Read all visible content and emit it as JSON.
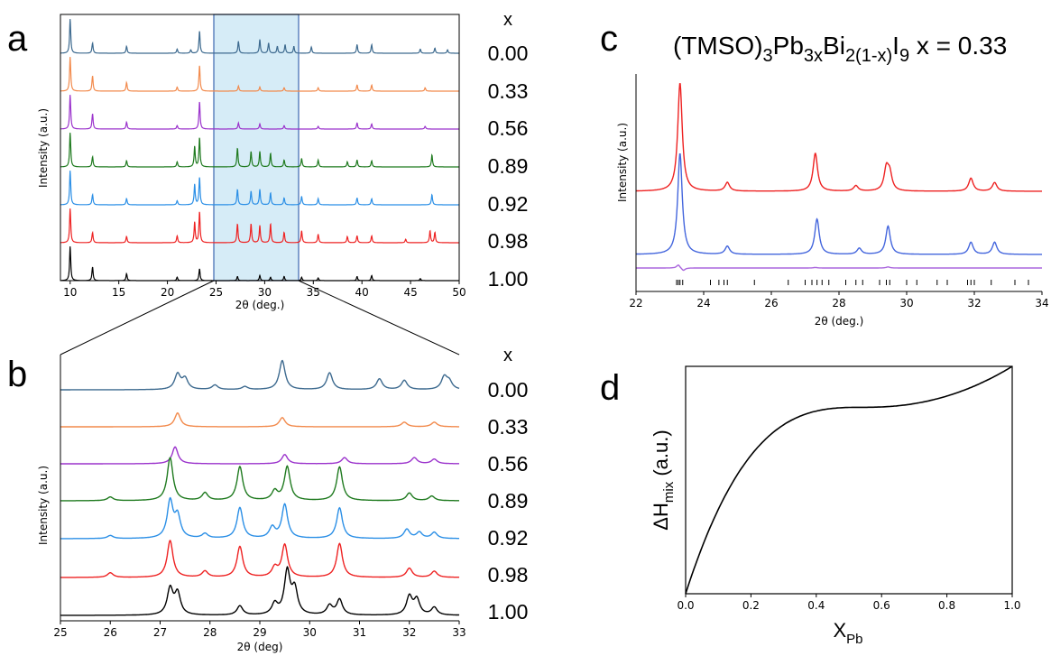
{
  "figure": {
    "x_header": "x",
    "composition_labels": [
      "0.00",
      "0.33",
      "0.56",
      "0.89",
      "0.92",
      "0.98",
      "1.00"
    ],
    "series_colors": [
      "#3d6a8f",
      "#f28a4c",
      "#9b33cc",
      "#1f7a1f",
      "#2b8fe6",
      "#ee2222",
      "#000000"
    ]
  },
  "panels": {
    "a": {
      "letter": "a",
      "ylabel": "Intensity (a.u.)",
      "xlabel_sym": "2θ",
      "xlabel_rest": "(deg.)",
      "highlight_range": [
        25,
        33.5
      ]
    },
    "b": {
      "letter": "b",
      "ylabel": "Intensity (a.u.)",
      "xlabel_sym": "2θ",
      "xlabel_rest": "(deg)"
    },
    "c": {
      "letter": "c",
      "title_main": "(TMSO)",
      "title_sub1": "3",
      "title_mid1": "Pb",
      "title_sub2": "3x",
      "title_mid2": "Bi",
      "title_sub3": "2(1-x)",
      "title_mid3": "I",
      "title_sub4": "9",
      "title_end": " x = 0.33",
      "ylabel": "Intensity (a.u.)",
      "xlabel_sym": "2θ",
      "xlabel_rest": "(deg.)",
      "series_colors": [
        "#ee2222",
        "#4466dd",
        "#aa66dd"
      ],
      "tick_marks_color": "#000000"
    },
    "d": {
      "letter": "d",
      "ylabel_main": "ΔH",
      "ylabel_sub": "mix",
      "ylabel_rest": " (a.u.)",
      "xlabel_main": "X",
      "xlabel_sub": "Pb"
    }
  },
  "chart_data": [
    {
      "panel": "a",
      "type": "line",
      "xlim": [
        9,
        50
      ],
      "xticks": [
        10,
        15,
        20,
        25,
        30,
        35,
        40,
        45,
        50
      ],
      "stacked": true,
      "series": [
        {
          "name": "0.00",
          "peaks": [
            [
              10.0,
              1.0
            ],
            [
              12.3,
              0.3
            ],
            [
              15.8,
              0.2
            ],
            [
              21.0,
              0.12
            ],
            [
              22.4,
              0.1
            ],
            [
              23.3,
              0.65
            ],
            [
              27.3,
              0.35
            ],
            [
              29.5,
              0.4
            ],
            [
              30.4,
              0.3
            ],
            [
              31.3,
              0.2
            ],
            [
              32.1,
              0.25
            ],
            [
              33.0,
              0.2
            ],
            [
              34.8,
              0.18
            ],
            [
              39.5,
              0.25
            ],
            [
              41.0,
              0.25
            ],
            [
              46.0,
              0.12
            ],
            [
              47.5,
              0.15
            ],
            [
              48.8,
              0.1
            ]
          ]
        },
        {
          "name": "0.33",
          "peaks": [
            [
              10.0,
              1.0
            ],
            [
              12.3,
              0.45
            ],
            [
              15.8,
              0.25
            ],
            [
              21.0,
              0.12
            ],
            [
              23.3,
              0.75
            ],
            [
              27.3,
              0.15
            ],
            [
              29.5,
              0.12
            ],
            [
              32.0,
              0.1
            ],
            [
              35.5,
              0.1
            ],
            [
              39.5,
              0.18
            ],
            [
              41.0,
              0.18
            ],
            [
              46.5,
              0.1
            ]
          ]
        },
        {
          "name": "0.56",
          "peaks": [
            [
              10.0,
              1.0
            ],
            [
              12.3,
              0.45
            ],
            [
              15.8,
              0.2
            ],
            [
              21.0,
              0.1
            ],
            [
              23.3,
              0.8
            ],
            [
              27.3,
              0.18
            ],
            [
              29.5,
              0.15
            ],
            [
              32.0,
              0.1
            ],
            [
              35.5,
              0.08
            ],
            [
              39.5,
              0.18
            ],
            [
              41.0,
              0.15
            ],
            [
              46.5,
              0.08
            ]
          ]
        },
        {
          "name": "0.89",
          "peaks": [
            [
              10.0,
              1.0
            ],
            [
              12.3,
              0.3
            ],
            [
              15.8,
              0.18
            ],
            [
              21.0,
              0.15
            ],
            [
              22.8,
              0.6
            ],
            [
              23.3,
              0.85
            ],
            [
              27.2,
              0.55
            ],
            [
              28.6,
              0.45
            ],
            [
              29.5,
              0.45
            ],
            [
              30.6,
              0.4
            ],
            [
              32.0,
              0.2
            ],
            [
              33.8,
              0.25
            ],
            [
              35.5,
              0.2
            ],
            [
              38.5,
              0.15
            ],
            [
              39.5,
              0.2
            ],
            [
              41.0,
              0.18
            ],
            [
              47.2,
              0.35
            ]
          ]
        },
        {
          "name": "0.92",
          "peaks": [
            [
              10.0,
              1.0
            ],
            [
              12.3,
              0.3
            ],
            [
              15.8,
              0.18
            ],
            [
              21.0,
              0.12
            ],
            [
              22.8,
              0.6
            ],
            [
              23.3,
              0.8
            ],
            [
              27.2,
              0.45
            ],
            [
              28.6,
              0.4
            ],
            [
              29.5,
              0.45
            ],
            [
              30.6,
              0.35
            ],
            [
              32.0,
              0.2
            ],
            [
              33.8,
              0.25
            ],
            [
              35.5,
              0.18
            ],
            [
              39.5,
              0.2
            ],
            [
              41.0,
              0.18
            ],
            [
              47.2,
              0.3
            ]
          ]
        },
        {
          "name": "0.98",
          "peaks": [
            [
              10.0,
              1.0
            ],
            [
              12.3,
              0.3
            ],
            [
              15.8,
              0.18
            ],
            [
              21.0,
              0.2
            ],
            [
              22.8,
              0.6
            ],
            [
              23.3,
              0.9
            ],
            [
              27.2,
              0.55
            ],
            [
              28.6,
              0.55
            ],
            [
              29.5,
              0.5
            ],
            [
              30.6,
              0.55
            ],
            [
              32.0,
              0.3
            ],
            [
              33.8,
              0.35
            ],
            [
              35.5,
              0.25
            ],
            [
              38.5,
              0.18
            ],
            [
              39.5,
              0.2
            ],
            [
              41.0,
              0.2
            ],
            [
              44.5,
              0.1
            ],
            [
              47.0,
              0.35
            ],
            [
              47.5,
              0.3
            ]
          ]
        },
        {
          "name": "1.00",
          "peaks": [
            [
              10.0,
              1.0
            ],
            [
              12.3,
              0.4
            ],
            [
              15.8,
              0.2
            ],
            [
              21.0,
              0.1
            ],
            [
              23.3,
              0.35
            ],
            [
              27.2,
              0.12
            ],
            [
              29.5,
              0.15
            ],
            [
              30.6,
              0.1
            ],
            [
              32.0,
              0.12
            ],
            [
              33.8,
              0.1
            ],
            [
              35.5,
              0.08
            ],
            [
              39.5,
              0.12
            ],
            [
              41.0,
              0.15
            ],
            [
              46.0,
              0.06
            ]
          ]
        }
      ]
    },
    {
      "panel": "b",
      "type": "line",
      "xlim": [
        25,
        33
      ],
      "xticks": [
        25,
        26,
        27,
        28,
        29,
        30,
        31,
        32,
        33
      ],
      "stacked": true,
      "series": [
        {
          "name": "0.00",
          "peaks": [
            [
              27.35,
              0.5
            ],
            [
              27.5,
              0.35
            ],
            [
              28.1,
              0.15
            ],
            [
              28.7,
              0.1
            ],
            [
              29.45,
              0.95
            ],
            [
              30.4,
              0.55
            ],
            [
              31.4,
              0.35
            ],
            [
              31.9,
              0.3
            ],
            [
              32.7,
              0.4
            ],
            [
              32.8,
              0.25
            ]
          ]
        },
        {
          "name": "0.33",
          "peaks": [
            [
              27.35,
              0.45
            ],
            [
              29.45,
              0.3
            ],
            [
              31.9,
              0.15
            ],
            [
              32.5,
              0.15
            ]
          ]
        },
        {
          "name": "0.56",
          "peaks": [
            [
              27.3,
              0.55
            ],
            [
              29.5,
              0.3
            ],
            [
              30.7,
              0.2
            ],
            [
              32.1,
              0.2
            ],
            [
              32.5,
              0.15
            ]
          ]
        },
        {
          "name": "0.89",
          "peaks": [
            [
              26.0,
              0.12
            ],
            [
              27.2,
              1.4
            ],
            [
              27.9,
              0.25
            ],
            [
              28.6,
              1.1
            ],
            [
              29.3,
              0.3
            ],
            [
              29.55,
              1.1
            ],
            [
              30.6,
              1.1
            ],
            [
              32.0,
              0.25
            ],
            [
              32.45,
              0.15
            ]
          ]
        },
        {
          "name": "0.92",
          "peaks": [
            [
              26.0,
              0.1
            ],
            [
              27.2,
              1.2
            ],
            [
              27.35,
              0.7
            ],
            [
              27.9,
              0.15
            ],
            [
              28.6,
              1.0
            ],
            [
              29.25,
              0.35
            ],
            [
              29.5,
              1.1
            ],
            [
              30.6,
              1.0
            ],
            [
              31.95,
              0.3
            ],
            [
              32.2,
              0.2
            ],
            [
              32.5,
              0.2
            ]
          ]
        },
        {
          "name": "0.98",
          "peaks": [
            [
              26.0,
              0.15
            ],
            [
              27.2,
              1.2
            ],
            [
              27.9,
              0.2
            ],
            [
              28.6,
              1.0
            ],
            [
              29.3,
              0.3
            ],
            [
              29.5,
              1.05
            ],
            [
              30.6,
              1.1
            ],
            [
              32.0,
              0.3
            ],
            [
              32.5,
              0.2
            ]
          ]
        },
        {
          "name": "1.00",
          "peaks": [
            [
              27.2,
              0.85
            ],
            [
              27.35,
              0.7
            ],
            [
              28.6,
              0.3
            ],
            [
              29.3,
              0.35
            ],
            [
              29.55,
              1.4
            ],
            [
              29.7,
              0.8
            ],
            [
              30.4,
              0.3
            ],
            [
              30.6,
              0.5
            ],
            [
              32.0,
              0.6
            ],
            [
              32.15,
              0.5
            ],
            [
              32.5,
              0.25
            ]
          ]
        }
      ]
    },
    {
      "panel": "c",
      "type": "line",
      "xlim": [
        22,
        34
      ],
      "xticks": [
        22,
        24,
        26,
        28,
        30,
        32,
        34
      ],
      "series": [
        {
          "name": "",
          "peaks": [
            [
              23.3,
              1.0
            ],
            [
              24.7,
              0.08
            ],
            [
              27.3,
              0.35
            ],
            [
              28.5,
              0.05
            ],
            [
              29.4,
              0.2
            ],
            [
              29.5,
              0.15
            ],
            [
              31.9,
              0.12
            ],
            [
              32.6,
              0.08
            ]
          ]
        },
        {
          "name": "",
          "peaks": [
            [
              23.3,
              1.0
            ],
            [
              24.7,
              0.08
            ],
            [
              27.35,
              0.35
            ],
            [
              28.6,
              0.06
            ],
            [
              29.45,
              0.28
            ],
            [
              31.9,
              0.12
            ],
            [
              32.6,
              0.12
            ]
          ]
        }
      ],
      "reflection_positions": [
        23.2,
        23.25,
        23.3,
        23.38,
        24.2,
        24.45,
        24.6,
        24.7,
        25.5,
        26.5,
        27.0,
        27.2,
        27.35,
        27.5,
        27.7,
        28.2,
        28.5,
        28.7,
        29.2,
        29.4,
        29.5,
        30.0,
        30.3,
        30.9,
        31.2,
        31.8,
        31.9,
        32.0,
        32.5,
        33.2,
        33.6
      ]
    },
    {
      "panel": "d",
      "type": "line",
      "xlim": [
        0.0,
        1.0
      ],
      "xticks": [
        "0.0",
        "0.2",
        "0.4",
        "0.6",
        "0.8",
        "1.0"
      ],
      "curve": "monotonic increasing, concave with plateau near 0.6"
    }
  ]
}
